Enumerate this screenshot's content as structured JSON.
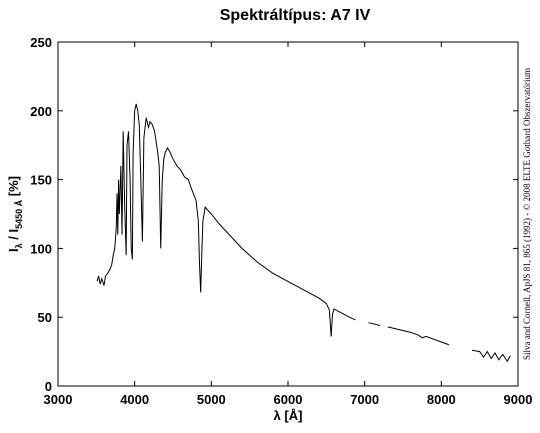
{
  "chart_data": {
    "type": "line",
    "title": "Spektráltípus: A7 IV",
    "xlabel": "λ [Å]",
    "ylabel_parts": [
      "I",
      "λ",
      " / I",
      "5450 Å",
      " [%]"
    ],
    "credit": "Silva and Cornell, ApJS 81, 865 (1992) - © 2008 ELTE Gothard Obszervatórium",
    "xlim": [
      3000,
      9000
    ],
    "xticks": [
      3000,
      4000,
      5000,
      6000,
      7000,
      8000,
      9000
    ],
    "ylim": [
      0,
      250
    ],
    "yticks": [
      0,
      50,
      100,
      150,
      200,
      250
    ],
    "series": [
      {
        "color": "#000000",
        "x": [
          3510,
          3530,
          3550,
          3570,
          3600,
          3620,
          3650,
          3680,
          3700,
          3720,
          3740,
          3760,
          3770,
          3780,
          3790,
          3800,
          3820,
          3835,
          3850,
          3870,
          3889,
          3900,
          3920,
          3940,
          3955,
          3970,
          3980,
          4000,
          4020,
          4040,
          4060,
          4080,
          4101,
          4120,
          4150,
          4180,
          4200,
          4230,
          4260,
          4300,
          4320,
          4340,
          4360,
          4380,
          4400,
          4430,
          4460,
          4500,
          4550,
          4600,
          4650,
          4700,
          4750,
          4800,
          4830,
          4845,
          4861,
          4875,
          4890,
          4920,
          4950,
          5000,
          5100,
          5200,
          5300,
          5400,
          5500,
          5600,
          5800,
          6000,
          6200,
          6400,
          6500,
          6540,
          6563,
          6580,
          6600,
          6700,
          6800,
          6880,
          6950,
          7050,
          7200,
          7250,
          7300,
          7600,
          7700,
          7750,
          7800,
          8000,
          8100,
          8250,
          8400,
          8500,
          8550,
          8600,
          8650,
          8700,
          8750,
          8800,
          8860,
          8900
        ],
        "values": [
          76,
          80,
          74,
          78,
          73,
          80,
          82,
          85,
          88,
          95,
          100,
          115,
          140,
          110,
          150,
          125,
          160,
          110,
          185,
          130,
          95,
          175,
          185,
          150,
          100,
          92,
          170,
          200,
          205,
          200,
          190,
          150,
          105,
          180,
          195,
          188,
          192,
          190,
          185,
          170,
          160,
          100,
          150,
          165,
          170,
          173,
          170,
          165,
          160,
          157,
          152,
          150,
          142,
          135,
          120,
          90,
          68,
          95,
          120,
          130,
          128,
          125,
          118,
          112,
          106,
          100,
          95,
          90,
          82,
          76,
          70,
          64,
          60,
          55,
          36,
          52,
          56,
          53,
          50,
          48,
          null,
          46,
          44,
          null,
          43,
          39,
          37,
          35,
          36,
          32,
          30,
          null,
          26,
          25,
          21,
          25,
          20,
          24,
          19,
          23,
          18,
          22
        ]
      }
    ]
  }
}
